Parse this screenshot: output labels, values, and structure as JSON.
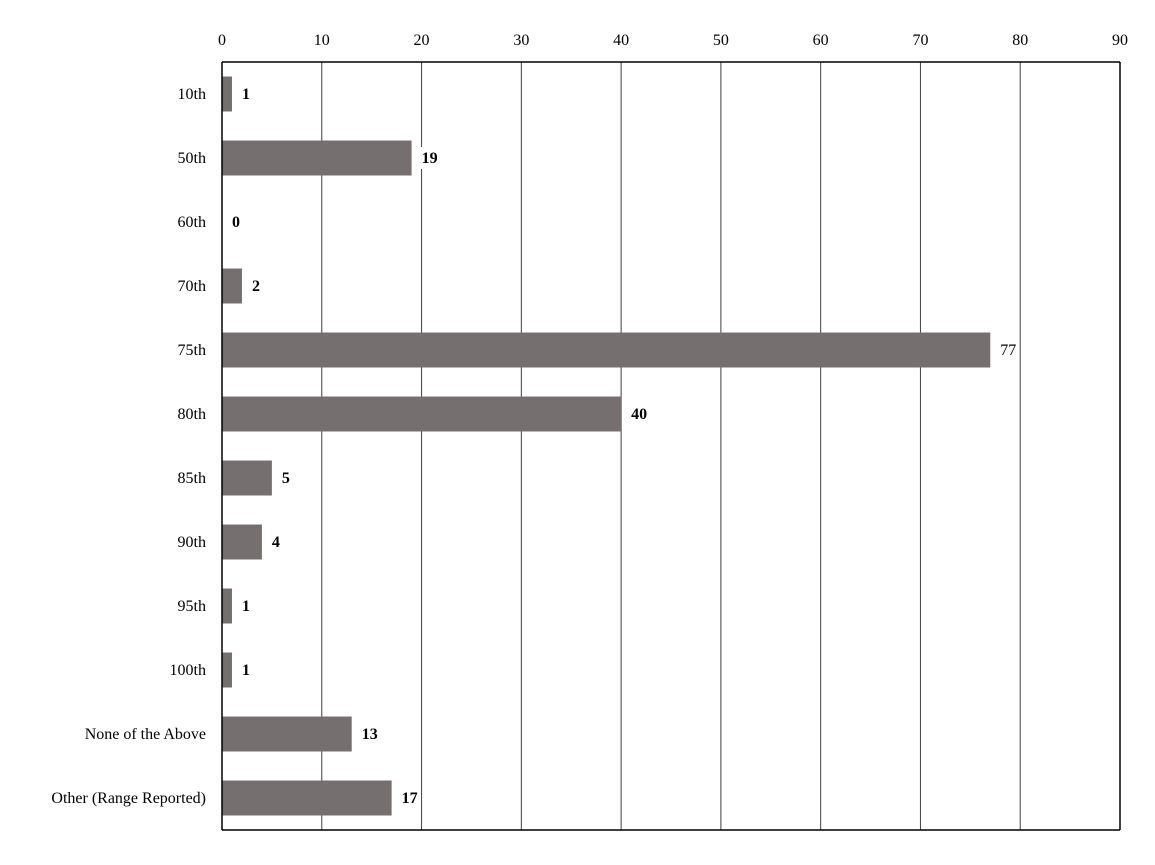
{
  "chart_data": {
    "type": "bar",
    "orientation": "horizontal",
    "title": "",
    "xlabel": "",
    "ylabel": "",
    "categories": [
      "10th",
      "50th",
      "60th",
      "70th",
      "75th",
      "80th",
      "85th",
      "90th",
      "95th",
      "100th",
      "None of the Above",
      "Other (Range Reported)"
    ],
    "values": [
      1,
      19,
      0,
      2,
      77,
      40,
      5,
      4,
      1,
      1,
      13,
      17
    ],
    "xlim": [
      0,
      90
    ],
    "xticks": [
      0,
      10,
      20,
      30,
      40,
      50,
      60,
      70,
      80,
      90
    ],
    "x_axis_position": "top",
    "grid": "vertical",
    "legend": "none",
    "bar_color": "#75706f",
    "data_labels": [
      "1",
      "19",
      "0",
      "2",
      "77",
      "40",
      "5",
      "4",
      "1",
      "1",
      "13",
      "17"
    ]
  }
}
